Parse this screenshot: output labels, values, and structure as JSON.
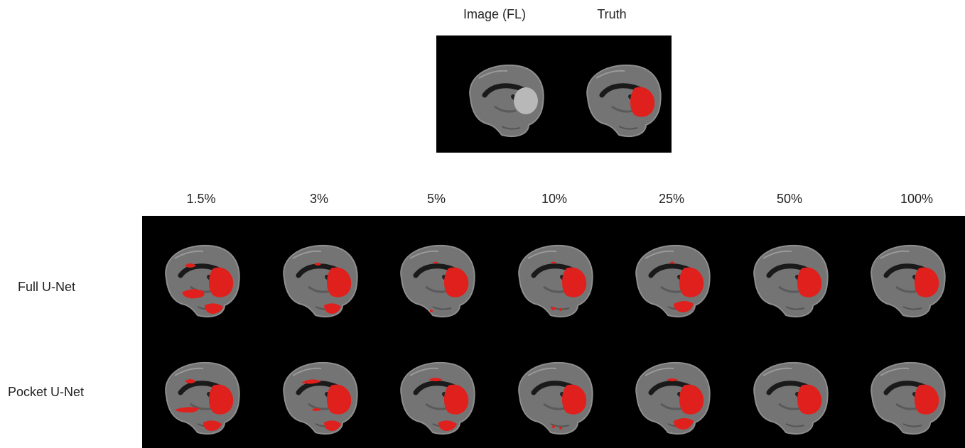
{
  "top_figure": {
    "columns": [
      "Image (FL)",
      "Truth"
    ],
    "colors": {
      "background": "#000000",
      "tissue": "#6f6f6f",
      "segmentation": "#e0201c"
    }
  },
  "grid_figure": {
    "column_labels": [
      "1.5%",
      "3%",
      "5%",
      "10%",
      "25%",
      "50%",
      "100%"
    ],
    "row_labels": [
      "Full U-Net",
      "Pocket U-Net"
    ],
    "colors": {
      "background": "#000000",
      "tissue": "#6f6f6f",
      "segmentation": "#e0201c"
    }
  }
}
